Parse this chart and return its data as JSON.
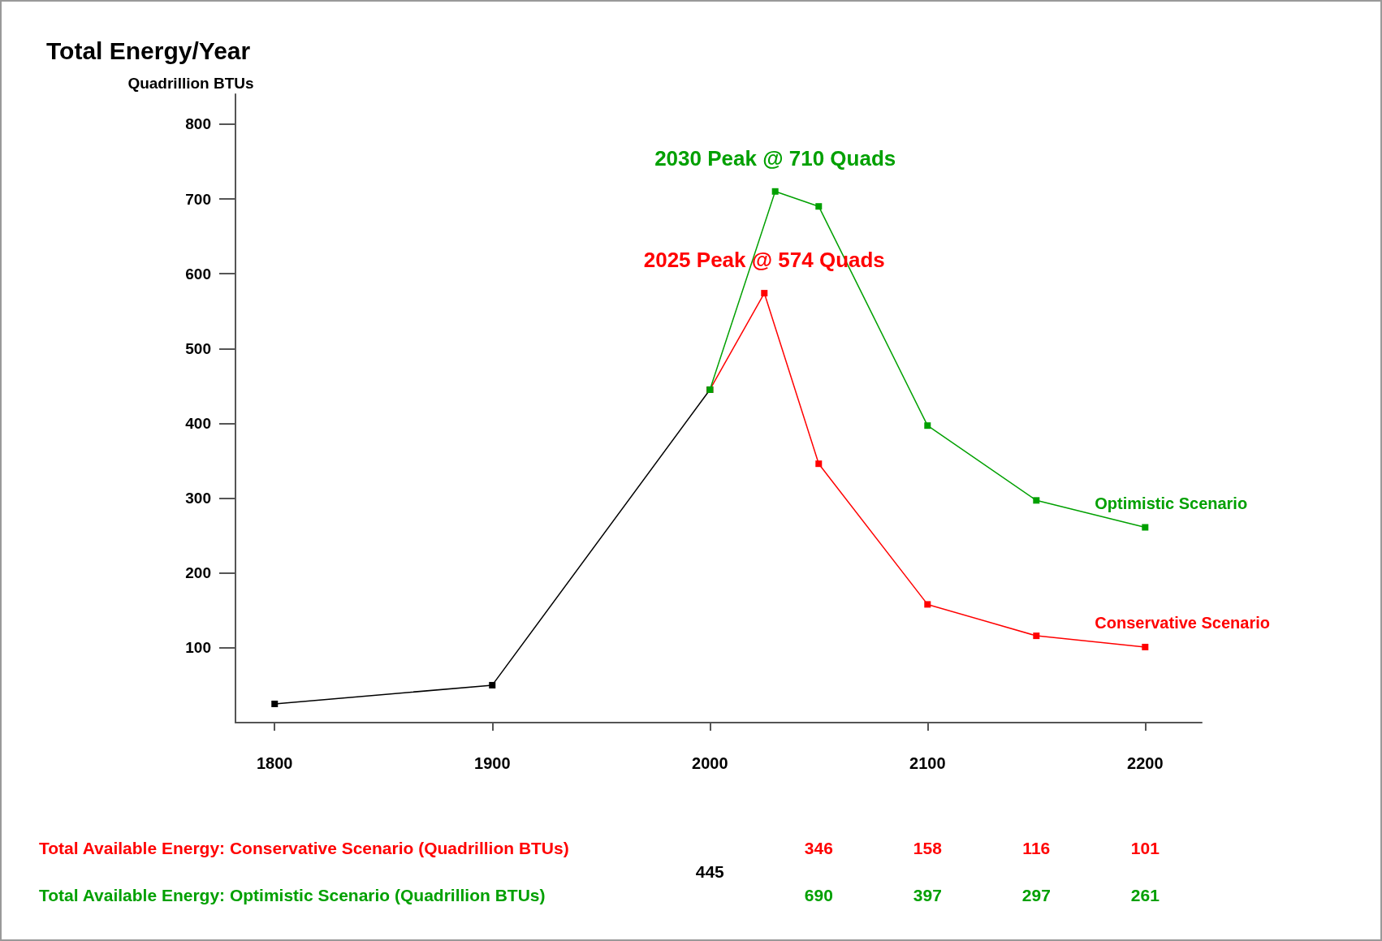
{
  "chart_data": {
    "type": "line",
    "title": "Total Energy/Year",
    "ylabel": "Quadrillion BTUs",
    "xlim": [
      1782,
      2226
    ],
    "xticks": [
      1800,
      1900,
      2000,
      2100,
      2200
    ],
    "ylim": [
      0,
      840
    ],
    "yticks": [
      100,
      200,
      300,
      400,
      500,
      600,
      700,
      800
    ],
    "grid": false,
    "legend": false,
    "marker": "square",
    "line_style": "solid",
    "series": [
      {
        "color": "#000000",
        "x": [
          1800,
          1900,
          2000
        ],
        "values": [
          25,
          50,
          445
        ]
      },
      {
        "name": "Conservative Scenario",
        "color": "#ff0000",
        "x": [
          2000,
          2025,
          2050,
          2100,
          2150,
          2200
        ],
        "values": [
          445,
          574,
          346,
          158,
          116,
          101
        ]
      },
      {
        "name": "Optimistic Scenario",
        "color": "#00a000",
        "x": [
          2000,
          2030,
          2050,
          2100,
          2150,
          2200
        ],
        "values": [
          445,
          710,
          690,
          397,
          297,
          261
        ]
      }
    ],
    "annotations": [
      {
        "text": "2025 Peak @ 574 Quads",
        "x": 2025,
        "y": 574
      },
      {
        "text": "2030 Peak @ 710 Quads",
        "x": 2030,
        "y": 710
      },
      "Total Available Energy: Conservative Scenario (Quadrillion BTUs)",
      "Total Available Energy: Optimistic Scenario (Quadrillion BTUs)",
      "445",
      "346",
      "158",
      "116",
      "101",
      "690",
      "397",
      "297",
      "261"
    ]
  }
}
